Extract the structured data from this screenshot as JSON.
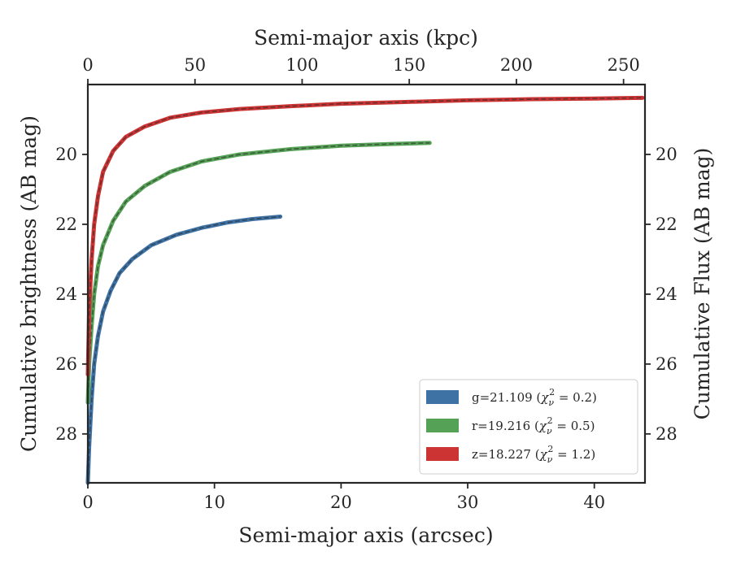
{
  "chart_data": {
    "type": "line",
    "xlabel_bottom": "Semi-major axis (arcsec)",
    "xlabel_top": "Semi-major axis (kpc)",
    "ylabel_left": "Cumulative brightness (AB mag)",
    "ylabel_right": "Cumulative Flux (AB mag)",
    "xlim": [
      0,
      44
    ],
    "ylim": [
      29.4,
      18.0
    ],
    "y_inverted": true,
    "x_top_lim": [
      0,
      260
    ],
    "x_ticks": [
      0,
      10,
      20,
      30,
      40
    ],
    "x_top_ticks": [
      0,
      50,
      100,
      150,
      200,
      250
    ],
    "y_ticks": [
      20,
      22,
      24,
      26,
      28
    ],
    "grid": false,
    "legend_position": "lower-right",
    "series": [
      {
        "name": "g",
        "legend_prefix": "g=21.109 (",
        "chi_value": "0.2",
        "color": "#3e72a5",
        "points": [
          [
            0,
            29.4
          ],
          [
            0.1,
            28.4
          ],
          [
            0.3,
            27.0
          ],
          [
            0.5,
            26.0
          ],
          [
            0.8,
            25.2
          ],
          [
            1.2,
            24.5
          ],
          [
            1.8,
            23.9
          ],
          [
            2.5,
            23.4
          ],
          [
            3.5,
            23.0
          ],
          [
            5,
            22.6
          ],
          [
            7,
            22.3
          ],
          [
            9,
            22.1
          ],
          [
            11,
            21.95
          ],
          [
            13,
            21.85
          ],
          [
            15.2,
            21.78
          ]
        ]
      },
      {
        "name": "r",
        "legend_prefix": "r=19.216 (",
        "chi_value": "0.5",
        "color": "#55a155",
        "points": [
          [
            0,
            27.1
          ],
          [
            0.1,
            26.0
          ],
          [
            0.3,
            24.9
          ],
          [
            0.5,
            24.0
          ],
          [
            0.8,
            23.2
          ],
          [
            1.2,
            22.6
          ],
          [
            2,
            21.9
          ],
          [
            3,
            21.35
          ],
          [
            4.5,
            20.9
          ],
          [
            6.5,
            20.5
          ],
          [
            9,
            20.2
          ],
          [
            12,
            20.0
          ],
          [
            16,
            19.85
          ],
          [
            20,
            19.75
          ],
          [
            24,
            19.7
          ],
          [
            27,
            19.67
          ]
        ]
      },
      {
        "name": "z",
        "legend_prefix": "z=18.227 (",
        "chi_value": "1.2",
        "color": "#cc3333",
        "points": [
          [
            0,
            26.3
          ],
          [
            0.1,
            24.5
          ],
          [
            0.3,
            23.0
          ],
          [
            0.5,
            22.0
          ],
          [
            0.8,
            21.2
          ],
          [
            1.2,
            20.5
          ],
          [
            2,
            19.9
          ],
          [
            3,
            19.5
          ],
          [
            4.5,
            19.2
          ],
          [
            6.5,
            18.95
          ],
          [
            9,
            18.8
          ],
          [
            12,
            18.7
          ],
          [
            16,
            18.62
          ],
          [
            20,
            18.55
          ],
          [
            25,
            18.5
          ],
          [
            30,
            18.45
          ],
          [
            35,
            18.42
          ],
          [
            40,
            18.4
          ],
          [
            43.8,
            18.38
          ]
        ]
      }
    ]
  }
}
